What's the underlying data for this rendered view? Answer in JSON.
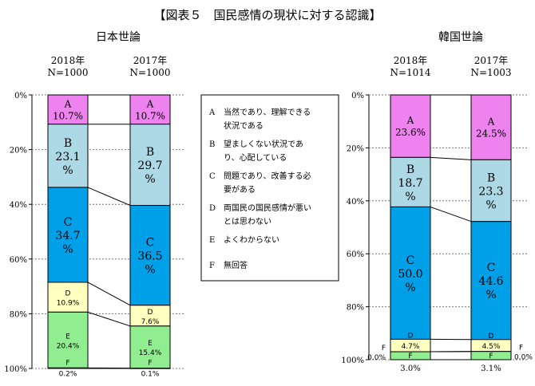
{
  "page": {
    "title": "【図表５　国民感情の現状に対する認識】"
  },
  "chart_data": [
    {
      "type": "bar",
      "stacked": true,
      "title": "日本世論",
      "categories": [
        "2018年\nN=1000",
        "2017年\nN=1000"
      ],
      "yaxis": {
        "ticks": [
          "0%",
          "20%",
          "40%",
          "60%",
          "80%",
          "100%"
        ],
        "range": [
          0,
          100
        ]
      },
      "series": [
        {
          "name": "A",
          "values": [
            10.7,
            10.7
          ],
          "labels": [
            "10.7%",
            "10.7%"
          ],
          "color": "#ee82ee"
        },
        {
          "name": "B",
          "values": [
            23.1,
            29.7
          ],
          "labels": [
            "23.1\n%",
            "29.7\n%"
          ],
          "color": "#add8e6"
        },
        {
          "name": "C",
          "values": [
            34.7,
            36.5
          ],
          "labels": [
            "34.7\n%",
            "36.5\n%"
          ],
          "color": "#00a0e8"
        },
        {
          "name": "D",
          "values": [
            10.9,
            7.6
          ],
          "labels": [
            "10.9%",
            "7.6%"
          ],
          "color": "#ffffc0"
        },
        {
          "name": "E",
          "values": [
            20.4,
            15.4
          ],
          "labels": [
            "20.4%",
            "15.4%"
          ],
          "color": "#90ee90"
        },
        {
          "name": "F",
          "values": [
            0.2,
            0.1
          ],
          "labels": [
            "0.2%",
            "0.1%"
          ],
          "color": "#ffffff"
        }
      ]
    },
    {
      "type": "bar",
      "stacked": true,
      "title": "韓国世論",
      "categories": [
        "2018年\nN=1014",
        "2017年\nN=1003"
      ],
      "yaxis": {
        "ticks": [
          "0%",
          "20%",
          "40%",
          "60%",
          "80%",
          "100%"
        ],
        "range": [
          0,
          100
        ]
      },
      "series": [
        {
          "name": "A",
          "values": [
            23.6,
            24.5
          ],
          "labels": [
            "23.6%",
            "24.5%"
          ],
          "color": "#ee82ee"
        },
        {
          "name": "B",
          "values": [
            18.7,
            23.3
          ],
          "labels": [
            "18.7\n%",
            "23.3\n%"
          ],
          "color": "#add8e6"
        },
        {
          "name": "C",
          "values": [
            50.0,
            44.6
          ],
          "labels": [
            "50.0\n%",
            "44.6\n%"
          ],
          "color": "#00a0e8"
        },
        {
          "name": "D",
          "values": [
            4.7,
            4.5
          ],
          "labels": [
            "4.7%",
            "4.5%"
          ],
          "color": "#ffffc0"
        },
        {
          "name": "E",
          "values": [
            0.0,
            0.0
          ],
          "labels": [
            "",
            ""
          ],
          "color": "#90ee90"
        },
        {
          "name": "F",
          "values": [
            3.0,
            3.1
          ],
          "labels": [
            "3.0%",
            "3.1%"
          ],
          "color": "#90ee90"
        }
      ],
      "side_notes": {
        "left": "0.0%",
        "right": "0.0%"
      }
    }
  ],
  "legend": {
    "items": [
      {
        "key": "A",
        "text": "当然であり、理解できる\n状況である"
      },
      {
        "key": "B",
        "text": "望ましくない状況であ\nり、心配している"
      },
      {
        "key": "C",
        "text": "問題であり、改善する必\n要がある"
      },
      {
        "key": "D",
        "text": "両国民の国民感情が悪い\nとは思わない"
      },
      {
        "key": "E",
        "text": "よくわからない"
      },
      {
        "key": "F",
        "text": "無回答"
      }
    ]
  }
}
